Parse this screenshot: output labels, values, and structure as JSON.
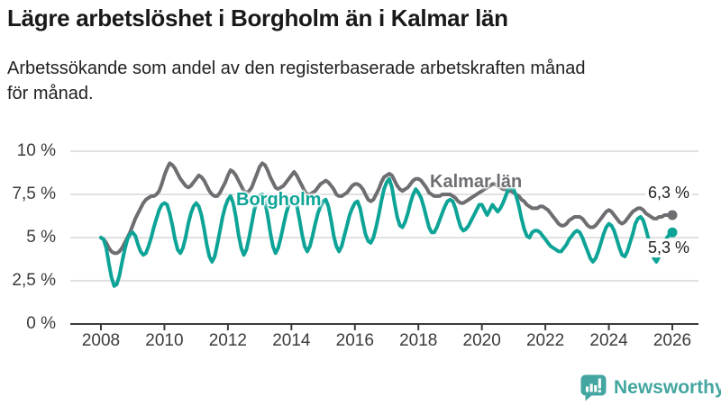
{
  "header": {
    "title": "Lägre arbetslöshet i Borgholm än i Kalmar län",
    "subtitle": "Arbetssökande som andel av den registerbaserade arbetskraften månad för månad.",
    "subtitle_line1": "Arbetssökande som andel av den registerbaserade arbetskraften månad",
    "subtitle_line2": "för månad."
  },
  "footer": {
    "brand": "Newsworthy",
    "logo_icon": "bar-chart-speech-bubble-icon"
  },
  "colors": {
    "borgholm": "#0da497",
    "kalmar": "#6e6e72",
    "grid": "#e1e1e1",
    "axis": "#3b3b3b",
    "title_text": "#191919",
    "logo_teal": "#44a6a0"
  },
  "chart_data": {
    "type": "line",
    "title": "Lägre arbetslöshet i Borgholm än i Kalmar län",
    "xlabel": "",
    "ylabel": "",
    "unit": "%",
    "frequency": "monthly",
    "x_start": "2008-01",
    "x_end": "2026-01",
    "ylim": [
      0,
      10
    ],
    "grid": "horizontal",
    "x_ticks": [
      "2008",
      "2010",
      "2012",
      "2014",
      "2016",
      "2018",
      "2020",
      "2022",
      "2024",
      "2026"
    ],
    "x_tick_years": [
      2008,
      2010,
      2012,
      2014,
      2016,
      2018,
      2020,
      2022,
      2024,
      2026
    ],
    "y_ticks": [
      "10 %",
      "7,5 %",
      "5 %",
      "2,5 %",
      "0 %"
    ],
    "y_tick_values": [
      10,
      7.5,
      5,
      2.5,
      0
    ],
    "series": [
      {
        "name": "Kalmar län",
        "color": "#6e6e72",
        "end_label": "6,3 %",
        "end_value": 6.3,
        "values": [
          5.0,
          4.9,
          4.7,
          4.4,
          4.2,
          4.1,
          4.1,
          4.2,
          4.4,
          4.7,
          5.0,
          5.3,
          5.7,
          6.1,
          6.4,
          6.7,
          7.0,
          7.2,
          7.3,
          7.4,
          7.4,
          7.5,
          7.7,
          8.1,
          8.6,
          9.0,
          9.3,
          9.2,
          9.0,
          8.7,
          8.4,
          8.2,
          8.0,
          7.9,
          8.0,
          8.2,
          8.4,
          8.6,
          8.5,
          8.3,
          8.0,
          7.7,
          7.5,
          7.4,
          7.4,
          7.6,
          7.9,
          8.2,
          8.6,
          8.9,
          8.8,
          8.6,
          8.3,
          8.0,
          7.7,
          7.6,
          7.7,
          7.9,
          8.3,
          8.7,
          9.1,
          9.3,
          9.2,
          8.9,
          8.5,
          8.2,
          7.9,
          7.8,
          7.9,
          8.0,
          8.2,
          8.4,
          8.6,
          8.8,
          8.6,
          8.3,
          8.0,
          7.7,
          7.5,
          7.5,
          7.6,
          7.7,
          7.9,
          8.1,
          8.2,
          8.3,
          8.2,
          8.0,
          7.8,
          7.5,
          7.4,
          7.4,
          7.5,
          7.6,
          7.8,
          8.0,
          8.1,
          8.1,
          8.0,
          7.8,
          7.5,
          7.2,
          7.1,
          7.2,
          7.5,
          7.8,
          8.2,
          8.5,
          8.6,
          8.7,
          8.6,
          8.3,
          8.0,
          7.8,
          7.7,
          7.8,
          7.9,
          8.1,
          8.3,
          8.4,
          8.4,
          8.3,
          8.1,
          7.9,
          7.6,
          7.5,
          7.4,
          7.4,
          7.4,
          7.5,
          7.5,
          7.5,
          7.5,
          7.4,
          7.3,
          7.1,
          7.0,
          7.0,
          7.1,
          7.2,
          7.3,
          7.4,
          7.5,
          7.6,
          7.7,
          7.8,
          7.9,
          8.0,
          8.1,
          8.1,
          8.0,
          7.9,
          7.8,
          7.8,
          7.7,
          7.7,
          7.6,
          7.5,
          7.4,
          7.2,
          7.1,
          6.9,
          6.8,
          6.7,
          6.7,
          6.7,
          6.8,
          6.8,
          6.7,
          6.6,
          6.4,
          6.2,
          6.0,
          5.8,
          5.7,
          5.7,
          5.8,
          6.0,
          6.1,
          6.2,
          6.2,
          6.2,
          6.1,
          5.9,
          5.7,
          5.6,
          5.6,
          5.7,
          5.9,
          6.1,
          6.3,
          6.5,
          6.6,
          6.5,
          6.3,
          6.1,
          5.9,
          5.8,
          5.9,
          6.1,
          6.3,
          6.5,
          6.6,
          6.7,
          6.7,
          6.6,
          6.4,
          6.3,
          6.2,
          6.1,
          6.1,
          6.2,
          6.2,
          6.3,
          6.3,
          6.3,
          6.3
        ]
      },
      {
        "name": "Borgholm",
        "color": "#0da497",
        "end_label": "5,3 %",
        "end_value": 5.3,
        "values": [
          5.0,
          4.9,
          4.4,
          3.5,
          2.7,
          2.2,
          2.3,
          2.8,
          3.6,
          4.3,
          4.9,
          5.2,
          5.3,
          5.1,
          4.6,
          4.2,
          4.0,
          4.1,
          4.5,
          5.0,
          5.6,
          6.1,
          6.6,
          6.9,
          7.0,
          6.9,
          6.4,
          5.7,
          4.9,
          4.3,
          4.1,
          4.4,
          5.0,
          5.8,
          6.4,
          6.8,
          7.0,
          6.8,
          6.3,
          5.5,
          4.6,
          3.9,
          3.6,
          3.9,
          4.6,
          5.4,
          6.2,
          6.8,
          7.2,
          7.4,
          7.0,
          6.2,
          5.2,
          4.4,
          4.0,
          4.3,
          5.0,
          5.8,
          6.6,
          7.1,
          7.4,
          7.5,
          7.1,
          6.3,
          5.3,
          4.5,
          4.1,
          4.4,
          5.0,
          5.7,
          6.4,
          6.9,
          7.2,
          7.3,
          6.9,
          6.1,
          5.2,
          4.5,
          4.2,
          4.5,
          5.1,
          5.8,
          6.4,
          6.8,
          7.1,
          7.2,
          6.8,
          6.0,
          5.1,
          4.5,
          4.2,
          4.5,
          5.1,
          5.7,
          6.3,
          6.7,
          7.0,
          7.1,
          6.7,
          5.9,
          5.2,
          4.8,
          4.7,
          5.0,
          5.6,
          6.3,
          7.1,
          7.8,
          8.2,
          8.4,
          7.9,
          7.0,
          6.2,
          5.7,
          5.6,
          5.9,
          6.4,
          7.0,
          7.5,
          7.8,
          7.6,
          7.3,
          6.8,
          6.2,
          5.6,
          5.3,
          5.3,
          5.6,
          6.0,
          6.4,
          6.8,
          7.1,
          7.2,
          7.1,
          6.7,
          6.1,
          5.6,
          5.4,
          5.5,
          5.7,
          6.0,
          6.3,
          6.6,
          6.9,
          6.9,
          6.6,
          6.3,
          6.6,
          6.9,
          6.7,
          6.5,
          6.7,
          7.0,
          7.4,
          7.8,
          7.9,
          7.8,
          7.4,
          6.8,
          6.1,
          5.5,
          5.1,
          5.0,
          5.3,
          5.4,
          5.4,
          5.3,
          5.1,
          4.9,
          4.7,
          4.5,
          4.4,
          4.3,
          4.2,
          4.2,
          4.4,
          4.6,
          4.9,
          5.1,
          5.3,
          5.4,
          5.3,
          5.0,
          4.6,
          4.2,
          3.8,
          3.6,
          3.8,
          4.2,
          4.7,
          5.2,
          5.6,
          5.8,
          5.7,
          5.4,
          4.9,
          4.4,
          4.0,
          3.9,
          4.2,
          4.7,
          5.2,
          5.8,
          6.1,
          6.2,
          6.0,
          5.5,
          4.9,
          4.3,
          3.8,
          3.6,
          3.9,
          4.3,
          4.7,
          5.0,
          5.2,
          5.3
        ]
      }
    ],
    "legend_position": "inline-labels"
  }
}
